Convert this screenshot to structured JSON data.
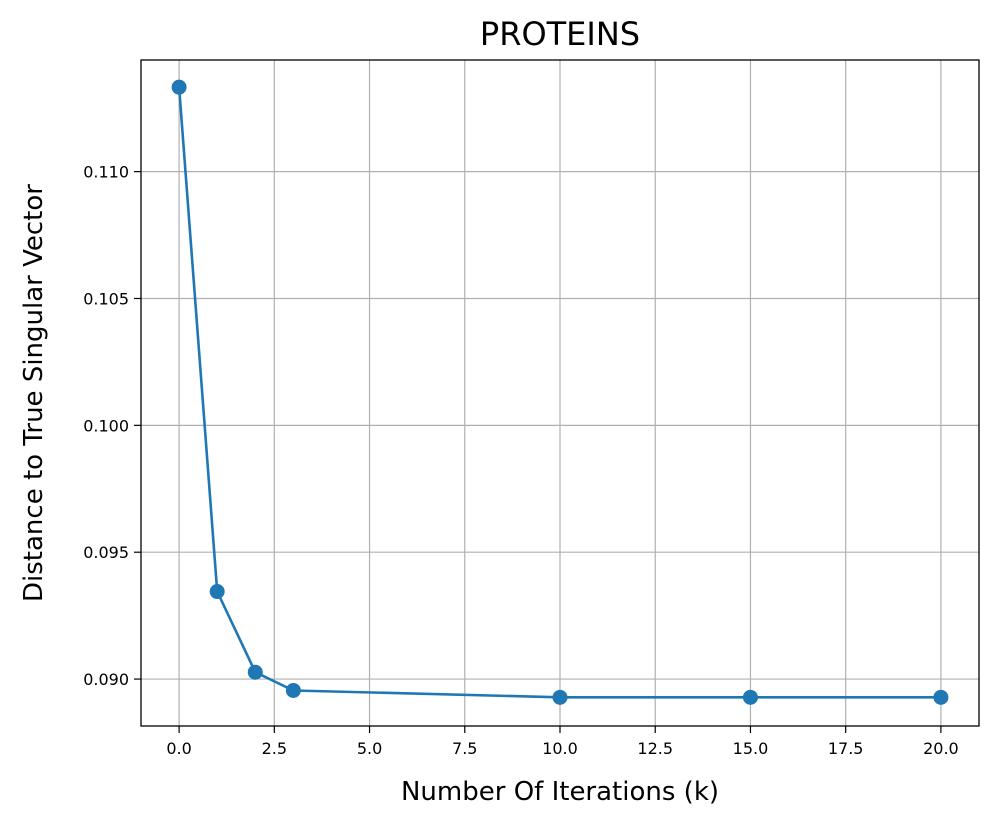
{
  "chart_data": {
    "type": "line",
    "title": "PROTEINS",
    "xlabel": "Number Of Iterations (k)",
    "ylabel": "Distance to True Singular Vector",
    "xlim": [
      -1.0,
      21.0
    ],
    "ylim": [
      0.08815,
      0.1144
    ],
    "xticks": [
      0.0,
      2.5,
      5.0,
      7.5,
      10.0,
      12.5,
      15.0,
      17.5,
      20.0
    ],
    "xtick_labels": [
      "0.0",
      "2.5",
      "5.0",
      "7.5",
      "10.0",
      "12.5",
      "15.0",
      "17.5",
      "20.0"
    ],
    "yticks": [
      0.09,
      0.095,
      0.1,
      0.105,
      0.11
    ],
    "ytick_labels": [
      "0.090",
      "0.095",
      "0.100",
      "0.105",
      "0.110"
    ],
    "grid": true,
    "series": [
      {
        "color": "#1f77b4",
        "marker": "circle",
        "x": [
          0,
          1,
          2,
          3,
          10,
          15,
          20
        ],
        "y": [
          0.11333,
          0.09345,
          0.09027,
          0.08955,
          0.08928,
          0.08928,
          0.08928
        ]
      }
    ]
  }
}
